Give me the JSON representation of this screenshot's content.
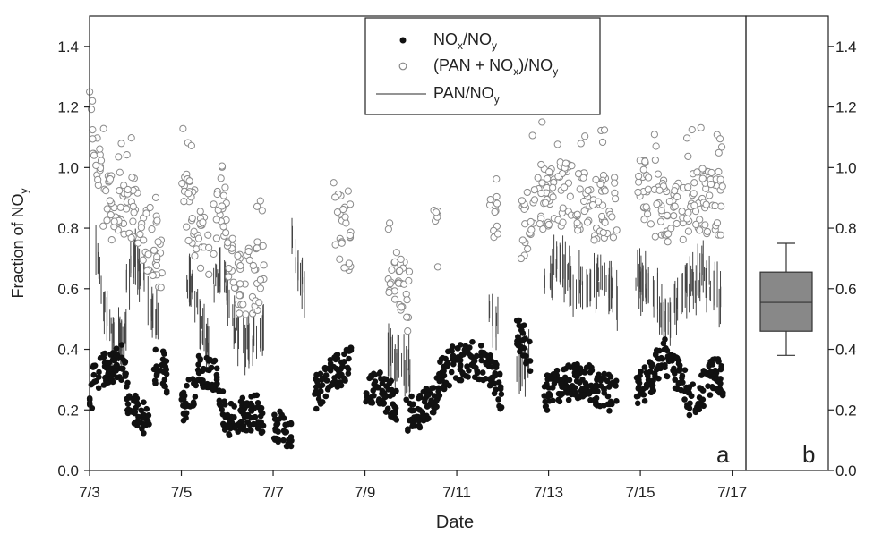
{
  "chart_data": [
    {
      "panel": "a",
      "type": "scatter",
      "xlabel": "Date",
      "ylabel": "Fraction of NO",
      "ylabel_sub": "y",
      "x_ticks": [
        "7/3",
        "7/5",
        "7/7",
        "7/9",
        "7/11",
        "7/13",
        "7/15",
        "7/17"
      ],
      "x_range_days": [
        3,
        17.3
      ],
      "ylim": [
        0,
        1.5
      ],
      "y_ticks": [
        "0.0",
        "0.2",
        "0.4",
        "0.6",
        "0.8",
        "1.0",
        "1.2",
        "1.4"
      ],
      "grid": false,
      "legend_position": "top-center",
      "legend": [
        {
          "label": "NO",
          "sub1": "x",
          "mid": "/NO",
          "sub2": "y",
          "marker": "filled-circle"
        },
        {
          "label": "(PAN + NO",
          "sub1": "x",
          "mid": ")/NO",
          "sub2": "y",
          "marker": "open-circle"
        },
        {
          "label": "PAN/NO",
          "sub1": "y",
          "mid": "",
          "sub2": "",
          "marker": "line"
        }
      ],
      "panel_label": "a",
      "series": [
        {
          "name": "NOx/NOy",
          "marker": "filled-circle",
          "segments": [
            {
              "x0": 3.0,
              "x1": 3.8,
              "ctrl": [
                [
                  3.0,
                  0.22
                ],
                [
                  3.1,
                  0.3
                ],
                [
                  3.3,
                  0.33
                ],
                [
                  3.6,
                  0.36
                ],
                [
                  3.8,
                  0.35
                ]
              ]
            },
            {
              "x0": 3.8,
              "x1": 4.3,
              "ctrl": [
                [
                  3.8,
                  0.24
                ],
                [
                  4.0,
                  0.19
                ],
                [
                  4.2,
                  0.17
                ],
                [
                  4.3,
                  0.15
                ]
              ]
            },
            {
              "x0": 4.4,
              "x1": 4.7,
              "ctrl": [
                [
                  4.4,
                  0.34
                ],
                [
                  4.55,
                  0.36
                ],
                [
                  4.7,
                  0.31
                ]
              ]
            },
            {
              "x0": 5.0,
              "x1": 5.3,
              "ctrl": [
                [
                  5.0,
                  0.2
                ],
                [
                  5.15,
                  0.24
                ],
                [
                  5.3,
                  0.28
                ]
              ]
            },
            {
              "x0": 5.3,
              "x1": 5.8,
              "ctrl": [
                [
                  5.3,
                  0.32
                ],
                [
                  5.5,
                  0.33
                ],
                [
                  5.8,
                  0.3
                ]
              ]
            },
            {
              "x0": 5.8,
              "x1": 6.4,
              "ctrl": [
                [
                  5.8,
                  0.25
                ],
                [
                  6.0,
                  0.17
                ],
                [
                  6.2,
                  0.16
                ],
                [
                  6.4,
                  0.19
                ]
              ]
            },
            {
              "x0": 6.4,
              "x1": 6.8,
              "ctrl": [
                [
                  6.4,
                  0.18
                ],
                [
                  6.6,
                  0.2
                ],
                [
                  6.8,
                  0.17
                ]
              ]
            },
            {
              "x0": 7.0,
              "x1": 7.4,
              "ctrl": [
                [
                  7.0,
                  0.15
                ],
                [
                  7.2,
                  0.13
                ],
                [
                  7.4,
                  0.1
                ]
              ]
            },
            {
              "x0": 7.9,
              "x1": 8.7,
              "ctrl": [
                [
                  7.9,
                  0.25
                ],
                [
                  8.2,
                  0.3
                ],
                [
                  8.5,
                  0.34
                ],
                [
                  8.7,
                  0.36
                ]
              ]
            },
            {
              "x0": 9.0,
              "x1": 9.7,
              "ctrl": [
                [
                  9.0,
                  0.25
                ],
                [
                  9.3,
                  0.27
                ],
                [
                  9.7,
                  0.22
                ]
              ]
            },
            {
              "x0": 9.9,
              "x1": 10.6,
              "ctrl": [
                [
                  9.9,
                  0.18
                ],
                [
                  10.2,
                  0.2
                ],
                [
                  10.6,
                  0.26
                ]
              ]
            },
            {
              "x0": 10.6,
              "x1": 11.2,
              "ctrl": [
                [
                  10.6,
                  0.3
                ],
                [
                  10.9,
                  0.35
                ],
                [
                  11.2,
                  0.36
                ]
              ]
            },
            {
              "x0": 11.2,
              "x1": 12.0,
              "ctrl": [
                [
                  11.2,
                  0.37
                ],
                [
                  11.5,
                  0.36
                ],
                [
                  11.8,
                  0.32
                ],
                [
                  12.0,
                  0.24
                ]
              ]
            },
            {
              "x0": 12.3,
              "x1": 12.6,
              "ctrl": [
                [
                  12.3,
                  0.45
                ],
                [
                  12.45,
                  0.43
                ],
                [
                  12.6,
                  0.38
                ]
              ]
            },
            {
              "x0": 12.9,
              "x1": 14.5,
              "ctrl": [
                [
                  12.9,
                  0.25
                ],
                [
                  13.3,
                  0.29
                ],
                [
                  13.8,
                  0.3
                ],
                [
                  14.2,
                  0.26
                ],
                [
                  14.5,
                  0.25
                ]
              ]
            },
            {
              "x0": 14.9,
              "x1": 15.5,
              "ctrl": [
                [
                  14.9,
                  0.26
                ],
                [
                  15.2,
                  0.3
                ],
                [
                  15.5,
                  0.38
                ]
              ]
            },
            {
              "x0": 15.5,
              "x1": 16.0,
              "ctrl": [
                [
                  15.5,
                  0.38
                ],
                [
                  15.75,
                  0.33
                ],
                [
                  16.0,
                  0.27
                ]
              ]
            },
            {
              "x0": 16.0,
              "x1": 16.8,
              "ctrl": [
                [
                  16.0,
                  0.22
                ],
                [
                  16.3,
                  0.25
                ],
                [
                  16.6,
                  0.33
                ],
                [
                  16.8,
                  0.3
                ]
              ]
            }
          ]
        },
        {
          "name": "(PAN + NOx)/NOy",
          "marker": "open-circle",
          "segments": [
            {
              "x0": 3.0,
              "x1": 3.8,
              "ctrl": [
                [
                  3.0,
                  1.25
                ],
                [
                  3.1,
                  1.05
                ],
                [
                  3.3,
                  0.9
                ],
                [
                  3.6,
                  0.85
                ],
                [
                  3.8,
                  0.82
                ]
              ]
            },
            {
              "x0": 3.8,
              "x1": 4.6,
              "ctrl": [
                [
                  3.8,
                  0.86
                ],
                [
                  4.0,
                  0.88
                ],
                [
                  4.2,
                  0.78
                ],
                [
                  4.4,
                  0.73
                ],
                [
                  4.6,
                  0.7
                ]
              ]
            },
            {
              "x0": 5.0,
              "x1": 5.6,
              "ctrl": [
                [
                  5.0,
                  0.92
                ],
                [
                  5.2,
                  0.85
                ],
                [
                  5.4,
                  0.78
                ],
                [
                  5.6,
                  0.72
                ]
              ]
            },
            {
              "x0": 5.7,
              "x1": 6.2,
              "ctrl": [
                [
                  5.7,
                  0.82
                ],
                [
                  5.9,
                  0.92
                ],
                [
                  6.0,
                  0.75
                ],
                [
                  6.2,
                  0.62
                ]
              ]
            },
            {
              "x0": 6.2,
              "x1": 6.8,
              "ctrl": [
                [
                  6.2,
                  0.63
                ],
                [
                  6.5,
                  0.62
                ],
                [
                  6.8,
                  0.65
                ]
              ]
            },
            {
              "x0": 8.3,
              "x1": 8.7,
              "ctrl": [
                [
                  8.3,
                  0.85
                ],
                [
                  8.5,
                  0.78
                ],
                [
                  8.7,
                  0.76
                ]
              ]
            },
            {
              "x0": 9.5,
              "x1": 10.0,
              "ctrl": [
                [
                  9.5,
                  0.68
                ],
                [
                  9.7,
                  0.62
                ],
                [
                  10.0,
                  0.55
                ]
              ]
            },
            {
              "x0": 10.5,
              "x1": 10.6,
              "ctrl": [
                [
                  10.5,
                  0.86
                ],
                [
                  10.6,
                  0.75
                ]
              ]
            },
            {
              "x0": 11.7,
              "x1": 11.9,
              "ctrl": [
                [
                  11.7,
                  0.92
                ],
                [
                  11.9,
                  0.84
                ]
              ]
            },
            {
              "x0": 12.4,
              "x1": 13.2,
              "ctrl": [
                [
                  12.4,
                  0.78
                ],
                [
                  12.8,
                  0.9
                ],
                [
                  13.2,
                  0.92
                ]
              ]
            },
            {
              "x0": 13.2,
              "x1": 14.5,
              "ctrl": [
                [
                  13.2,
                  0.92
                ],
                [
                  13.6,
                  0.9
                ],
                [
                  14.0,
                  0.86
                ],
                [
                  14.5,
                  0.88
                ]
              ]
            },
            {
              "x0": 14.9,
              "x1": 15.6,
              "ctrl": [
                [
                  14.9,
                  0.95
                ],
                [
                  15.2,
                  0.9
                ],
                [
                  15.6,
                  0.84
                ]
              ]
            },
            {
              "x0": 15.6,
              "x1": 16.8,
              "ctrl": [
                [
                  15.6,
                  0.84
                ],
                [
                  16.0,
                  0.85
                ],
                [
                  16.3,
                  0.9
                ],
                [
                  16.8,
                  0.86
                ]
              ]
            }
          ]
        },
        {
          "name": "PAN/NOy",
          "marker": "line",
          "segments": [
            {
              "x0": 3.0,
              "x1": 3.8,
              "ctrl": [
                [
                  3.0,
                  1.0
                ],
                [
                  3.1,
                  0.75
                ],
                [
                  3.3,
                  0.55
                ],
                [
                  3.5,
                  0.45
                ],
                [
                  3.8,
                  0.45
                ]
              ]
            },
            {
              "x0": 3.8,
              "x1": 4.6,
              "ctrl": [
                [
                  3.8,
                  0.62
                ],
                [
                  4.0,
                  0.7
                ],
                [
                  4.2,
                  0.62
                ],
                [
                  4.4,
                  0.5
                ],
                [
                  4.6,
                  0.45
                ]
              ]
            },
            {
              "x0": 5.0,
              "x1": 5.6,
              "ctrl": [
                [
                  5.0,
                  0.7
                ],
                [
                  5.2,
                  0.6
                ],
                [
                  5.4,
                  0.5
                ],
                [
                  5.6,
                  0.4
                ]
              ]
            },
            {
              "x0": 5.7,
              "x1": 6.8,
              "ctrl": [
                [
                  5.7,
                  0.6
                ],
                [
                  5.9,
                  0.7
                ],
                [
                  6.1,
                  0.5
                ],
                [
                  6.4,
                  0.42
                ],
                [
                  6.8,
                  0.45
                ]
              ]
            },
            {
              "x0": 7.4,
              "x1": 7.7,
              "ctrl": [
                [
                  7.4,
                  0.75
                ],
                [
                  7.55,
                  0.65
                ],
                [
                  7.7,
                  0.6
                ]
              ]
            },
            {
              "x0": 9.5,
              "x1": 10.0,
              "ctrl": [
                [
                  9.5,
                  0.4
                ],
                [
                  9.7,
                  0.37
                ],
                [
                  10.0,
                  0.32
                ]
              ]
            },
            {
              "x0": 11.7,
              "x1": 11.9,
              "ctrl": [
                [
                  11.7,
                  0.55
                ],
                [
                  11.9,
                  0.48
                ]
              ]
            },
            {
              "x0": 12.3,
              "x1": 12.6,
              "ctrl": [
                [
                  12.3,
                  0.35
                ],
                [
                  12.5,
                  0.35
                ],
                [
                  12.6,
                  0.38
                ]
              ]
            },
            {
              "x0": 12.9,
              "x1": 14.5,
              "ctrl": [
                [
                  12.9,
                  0.62
                ],
                [
                  13.2,
                  0.7
                ],
                [
                  13.6,
                  0.6
                ],
                [
                  14.2,
                  0.62
                ],
                [
                  14.5,
                  0.55
                ]
              ]
            },
            {
              "x0": 14.9,
              "x1": 16.8,
              "ctrl": [
                [
                  14.9,
                  0.65
                ],
                [
                  15.2,
                  0.6
                ],
                [
                  15.6,
                  0.5
                ],
                [
                  16.0,
                  0.6
                ],
                [
                  16.4,
                  0.65
                ],
                [
                  16.8,
                  0.55
                ]
              ]
            }
          ]
        }
      ]
    },
    {
      "panel": "b",
      "type": "box",
      "ylim": [
        0,
        1.5
      ],
      "y_ticks": [
        "0.0",
        "0.2",
        "0.4",
        "0.6",
        "0.8",
        "1.0",
        "1.2",
        "1.4"
      ],
      "panel_label": "b",
      "box": {
        "whisker_low": 0.38,
        "q1": 0.46,
        "median": 0.555,
        "q3": 0.655,
        "whisker_high": 0.75
      },
      "fill_color": "#888888"
    }
  ]
}
